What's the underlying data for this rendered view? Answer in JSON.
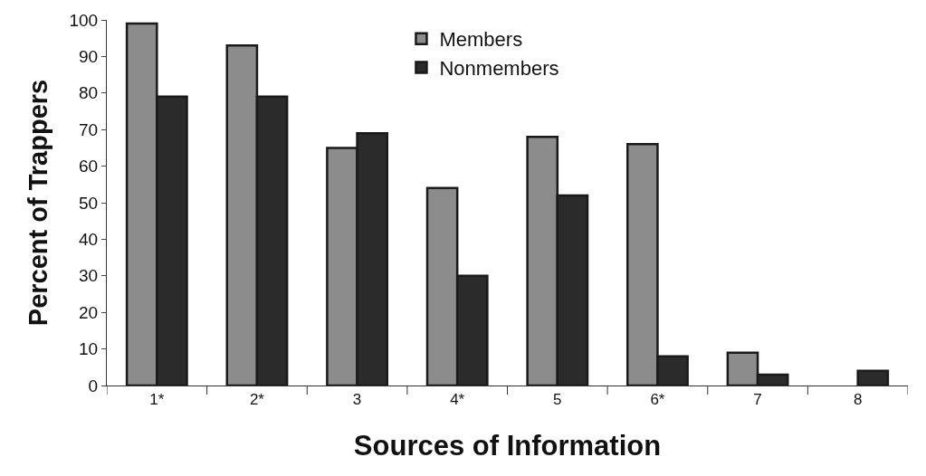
{
  "chart_data": {
    "type": "bar",
    "xlabel": "Sources of Information",
    "ylabel": "Percent of Trappers",
    "categories": [
      "1*",
      "2*",
      "3",
      "4*",
      "5",
      "6*",
      "7",
      "8"
    ],
    "series": [
      {
        "name": "Members",
        "color": "#8c8c8c",
        "values": [
          99,
          93,
          65,
          54,
          68,
          66,
          9,
          null
        ]
      },
      {
        "name": "Nonmembers",
        "color": "#2b2b2b",
        "values": [
          79,
          79,
          69,
          30,
          52,
          8,
          3,
          4
        ]
      }
    ],
    "ylim": [
      0,
      100
    ],
    "yticks": [
      0,
      10,
      20,
      30,
      40,
      50,
      60,
      70,
      80,
      90,
      100
    ],
    "legend": "top"
  }
}
